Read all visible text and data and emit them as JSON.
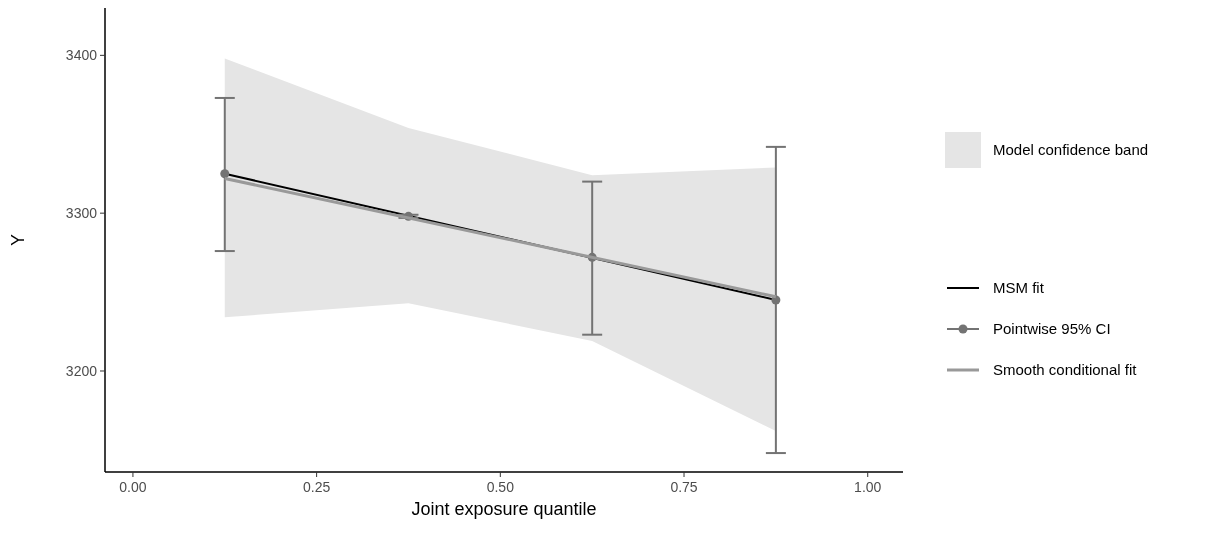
{
  "chart_data": {
    "type": "line",
    "xlabel": "Joint exposure quantile",
    "ylabel": "Y",
    "xlim": [
      -0.038,
      1.048
    ],
    "xticks": [
      {
        "value": 0,
        "label": "0.00"
      },
      {
        "value": 0.25,
        "label": "0.25"
      },
      {
        "value": 0.5,
        "label": "0.50"
      },
      {
        "value": 0.75,
        "label": "0.75"
      },
      {
        "value": 1,
        "label": "1.00"
      }
    ],
    "ylim": [
      3136,
      3430
    ],
    "yticks": [
      3200,
      3300,
      3400
    ],
    "grid": false,
    "legend": "right",
    "series": [
      {
        "name": "Model confidence band",
        "type": "area",
        "color": "#e5e5e5",
        "x": [
          0.125,
          0.375,
          0.625,
          0.875
        ],
        "values": [
          null,
          null,
          null,
          null
        ],
        "lower": [
          3234,
          3243,
          3219,
          3162
        ],
        "upper": [
          3398,
          3354,
          3324,
          3329
        ]
      },
      {
        "name": "MSM fit",
        "color": "#000000",
        "x": [
          0.125,
          0.875
        ],
        "values": [
          3325,
          3245
        ]
      },
      {
        "name": "Pointwise 95% CI",
        "type": "scatter",
        "color": "#737373",
        "marker": "circle",
        "x": [
          0.125,
          0.375,
          0.625,
          0.875
        ],
        "values": [
          3325,
          3298,
          3272,
          3245
        ],
        "errors": [
          [
            3276,
            3373
          ],
          [
            3297,
            3299
          ],
          [
            3223,
            3320
          ],
          [
            3148,
            3342
          ]
        ]
      },
      {
        "name": "Smooth conditional fit",
        "color": "#999999",
        "x": [
          0.125,
          0.875
        ],
        "values": [
          3322,
          3247
        ]
      }
    ]
  }
}
